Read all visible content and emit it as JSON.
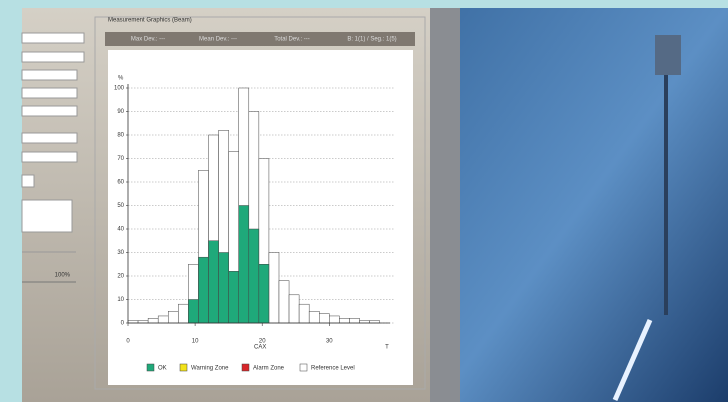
{
  "window": {
    "panel_title": "Measurement Graphics (Beam)",
    "status": [
      "Max Dev.: ---",
      "Mean Dev.: ---",
      "Total Dev.: ---",
      "B: 1(1) / Seg.: 1(5)"
    ],
    "progress_label": "100%"
  },
  "chart_data": {
    "type": "histogram",
    "ylabel": "%",
    "xlabel": "CAX",
    "x_end_label": "T",
    "bins": [
      0,
      1.5,
      3,
      4.5,
      6,
      7.5,
      9,
      10.5,
      12,
      13.5,
      15,
      16.5,
      18,
      19.5,
      21,
      22.5,
      24,
      25.5,
      27,
      28.5,
      30,
      31.5,
      33,
      34.5,
      36,
      37.5
    ],
    "series": [
      {
        "name": "OK",
        "color": "#1fa97a",
        "values": [
          0,
          0,
          0,
          0,
          0,
          0,
          10,
          28,
          35,
          30,
          22,
          50,
          40,
          25,
          0,
          0,
          0,
          0,
          0,
          0,
          0,
          0,
          0,
          0,
          0
        ]
      },
      {
        "name": "Warning Zone",
        "color": "#f2e21a",
        "values": [
          0,
          0,
          0,
          0,
          0,
          0,
          0,
          0,
          0,
          0,
          0,
          0,
          0,
          0,
          0,
          0,
          0,
          0,
          0,
          0,
          0,
          0,
          0,
          0,
          0
        ]
      },
      {
        "name": "Alarm Zone",
        "color": "#d8262a",
        "values": [
          0,
          0,
          0,
          0,
          0,
          0,
          0,
          0,
          0,
          0,
          0,
          0,
          0,
          0,
          0,
          0,
          0,
          0,
          0,
          0,
          0,
          0,
          0,
          0,
          0
        ]
      },
      {
        "name": "Reference Level",
        "color": "#ffffff",
        "values": [
          1,
          1,
          2,
          3,
          5,
          8,
          25,
          65,
          80,
          82,
          73,
          100,
          90,
          70,
          30,
          18,
          12,
          8,
          5,
          4,
          3,
          2,
          2,
          1,
          1
        ]
      }
    ],
    "xlim": [
      0,
      38
    ],
    "xticks": [
      0,
      10,
      20,
      30
    ],
    "ylim": [
      0,
      100
    ],
    "yticks": [
      0,
      10,
      20,
      30,
      40,
      50,
      60,
      70,
      80,
      90,
      100
    ],
    "grid": true
  }
}
